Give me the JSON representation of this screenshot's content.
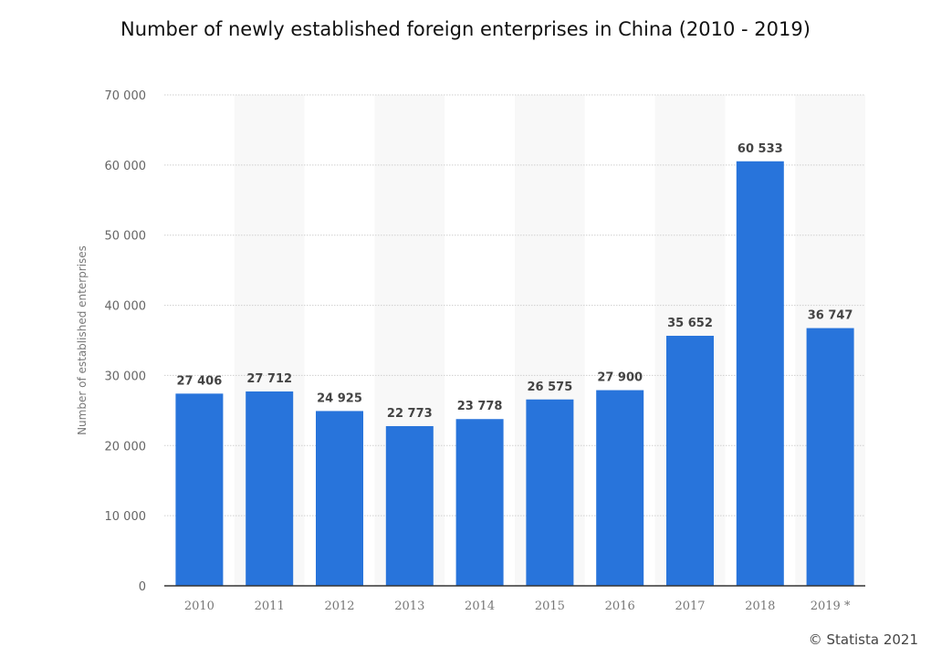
{
  "chart_data": {
    "type": "bar",
    "title": "Number of newly established foreign enterprises in China (2010 - 2019)",
    "xlabel": "",
    "ylabel": "Number of established enterprises",
    "categories": [
      "2010",
      "2011",
      "2012",
      "2013",
      "2014",
      "2015",
      "2016",
      "2017",
      "2018",
      "2019 *"
    ],
    "values": [
      27406,
      27712,
      24925,
      22773,
      23778,
      26575,
      27900,
      35652,
      60533,
      36747
    ],
    "data_labels": [
      "27 406",
      "27 712",
      "24 925",
      "22 773",
      "23 778",
      "26 575",
      "27 900",
      "35 652",
      "60 533",
      "36 747"
    ],
    "ylim": [
      0,
      70000
    ],
    "yticks": [
      0,
      10000,
      20000,
      30000,
      40000,
      50000,
      60000,
      70000
    ],
    "ytick_labels": [
      "0",
      "10 000",
      "20 000",
      "30 000",
      "40 000",
      "50 000",
      "60 000",
      "70 000"
    ],
    "grid": true,
    "bar_color": "#2874db",
    "legend": "none"
  },
  "credit": "© Statista 2021"
}
